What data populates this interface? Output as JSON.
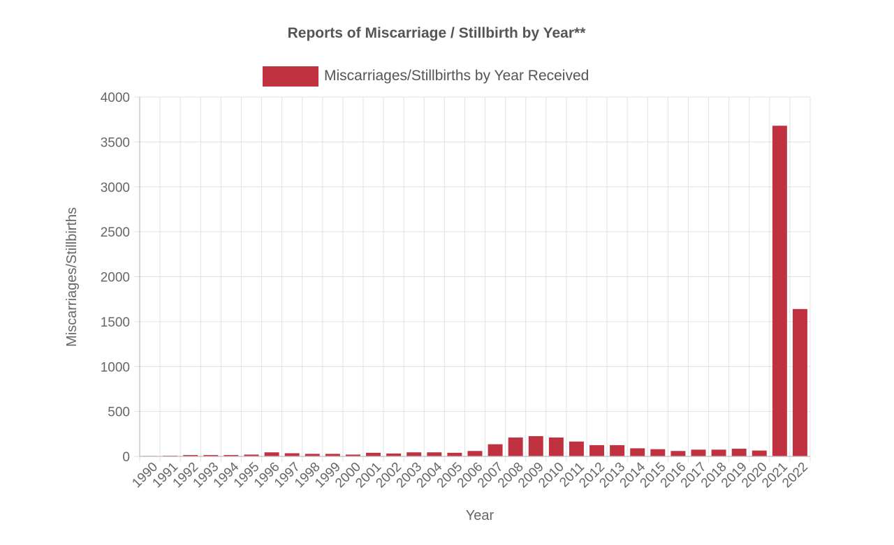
{
  "chart_data": {
    "type": "bar",
    "title": "Reports of Miscarriage / Stillbirth by Year**",
    "xlabel": "Year",
    "ylabel": "Miscarriages/Stillbirths",
    "ylim": [
      0,
      4000
    ],
    "yticks": [
      "0",
      "500",
      "1000",
      "1500",
      "2000",
      "2500",
      "3000",
      "3500",
      "4000"
    ],
    "categories": [
      "1990",
      "1991",
      "1992",
      "1993",
      "1994",
      "1995",
      "1996",
      "1997",
      "1998",
      "1999",
      "2000",
      "2001",
      "2002",
      "2003",
      "2004",
      "2005",
      "2006",
      "2007",
      "2008",
      "2009",
      "2010",
      "2011",
      "2012",
      "2013",
      "2014",
      "2015",
      "2016",
      "2017",
      "2018",
      "2019",
      "2020",
      "2021",
      "2022"
    ],
    "series": [
      {
        "name": "Miscarriages/Stillbirths by Year Received",
        "color": "#c0323f",
        "values": [
          5,
          8,
          15,
          15,
          15,
          20,
          45,
          35,
          28,
          28,
          20,
          40,
          32,
          45,
          45,
          40,
          60,
          135,
          210,
          225,
          210,
          165,
          125,
          125,
          90,
          80,
          60,
          75,
          75,
          85,
          65,
          3680,
          1640
        ]
      }
    ],
    "grid": true,
    "legend": "top-center"
  }
}
